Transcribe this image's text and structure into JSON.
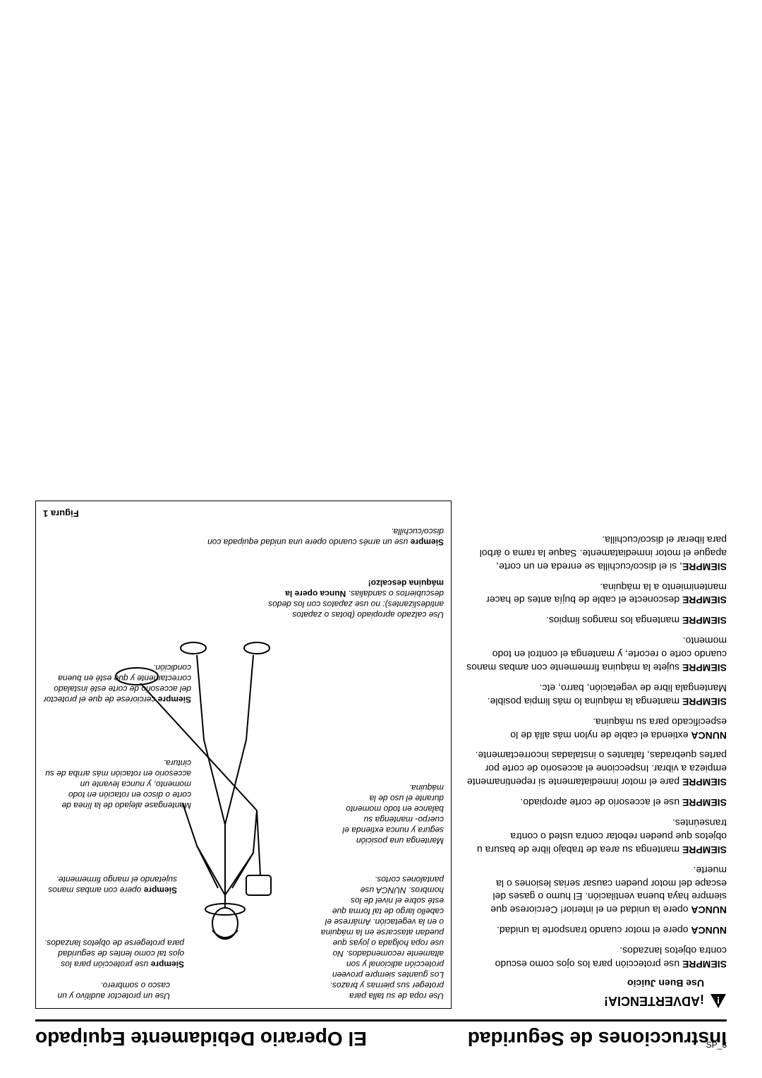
{
  "page_number": "SP_3",
  "header": {
    "left": "Instrucciones de Seguridad",
    "right": "El Operario Debidamente Equipado"
  },
  "warning": {
    "title": "¡ADVERTENCIA!",
    "subtitle": "Use Buen Juicio"
  },
  "rules": [
    {
      "strong": "SIEMPRE",
      "text": " use protección para los ojos como escudo contra objetos lanzados."
    },
    {
      "strong": "NUNCA",
      "text": " opere el motor cuando transporte la unidad."
    },
    {
      "strong": "NUNCA",
      "text": " opere la unidad en el interior! Cerciorese que siempre haya buena ventilación. El humo o gases del escape del motor pueden causar serias lesiones o la muerte."
    },
    {
      "strong": "SIEMPRE",
      "text": " mantenga su area de trabajo libre de basura u objetos que pueden rebotar contra usted o contra transeúntes."
    },
    {
      "strong": "SIEMPRE",
      "text": " use el accesorio de corte apropiado."
    },
    {
      "strong": "SIEMPRE",
      "text": " pare el motor inmediatamente si repentinamente empieza a vibrar. Inspeccione el accesorio de corte por partes quebradas, faltantes o instaladas incorrectamente."
    },
    {
      "strong": "NUNCA",
      "text": " extienda el cable de nylon más allá de lo especificado para su máquina."
    },
    {
      "strong": "SIEMPRE",
      "text": " mantenga la máquina lo más limpia posible. Mantengala libre de vegetación, barro, etc."
    },
    {
      "strong": "SIEMPRE",
      "text": " sujete la máquina firmemente con ambas manos cuando corte o recorte, y mantenga el control en todo momento."
    },
    {
      "strong": "SIEMPRE",
      "text": " mantenga los mangos limpios."
    },
    {
      "strong": "SIEMPRE",
      "text": " desconecte el cable de bujía antes de hacer mantenimiento a la máquina."
    },
    {
      "strong": "SIEMPRE",
      "text": ", si el disco/cuchilla se enreda en un corte, apague el motor inmediatamente. Saque la rama o árbol para liberar el disco/cuchilla."
    }
  ],
  "figure": {
    "label": "Figura 1",
    "callouts": {
      "clothing": "Use ropa de su talla para proteger sus piernas y brazos. Los guantes siempre proveen protección adicional y son altamente recomendados. No use ropa holgada o joyas que puedan atascarse en la máquina o en la vegetación. Amárrese el cabello largo de tal forma que esté sobre el nivel de los hombros. NUNCA use pantalones cortos.",
      "helmet": "Use un protector auditivo y un casco o sombrero.",
      "eyes": {
        "strong": "Siempre",
        "text": " use protección para los ojos tal como lentes de seguridad para protegerse de objetos lanzados."
      },
      "hands": {
        "strong": "Siempre",
        "text": " opere con ambas manos sujetando el mango firmemente."
      },
      "posture": "Mantenga una posición segura y nunca extienda el cuerpo- mantenga su balance en todo momento durante el uso de la máquina.",
      "rotation": "Mantengase alejado de la línea de corte o disco en rotación en todo momento, y nunca levante un accesorio en rotación más arriba de su cintura.",
      "guard": {
        "strong": "Siempre",
        "text": " cerciorese de que el protector del accesorio de corte esté instalado correctamente y que esté en buena condición."
      },
      "footwear": {
        "plain": "Use calzado apropiado (botas o zapatos antideslizantes): no use zapatos con los dedos descubiertos o sandalias. ",
        "strong": "Nunca opere la máquina descalzo!"
      },
      "harness": {
        "strong": "Siempre",
        "text": " use un arnés cuando opere una unidad equipada con disco/cuchilla."
      }
    }
  },
  "colors": {
    "text": "#000000",
    "background": "#ffffff",
    "border": "#000000"
  }
}
